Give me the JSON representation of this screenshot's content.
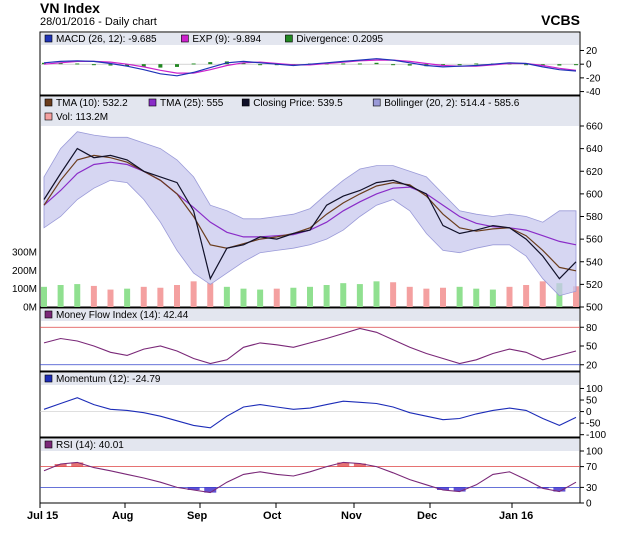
{
  "header": {
    "title": "VN Index",
    "subtitle": "28/01/2016 - Daily chart",
    "brand": "VCBS"
  },
  "colors": {
    "plot_bg": "#ffffff",
    "panel_border": "#000000",
    "legend_bg": "#e3e6ef",
    "macd": "#2034b8",
    "macd_ema": "#cc22cc",
    "divergence": "#228822",
    "tma10": "#6b3d1d",
    "tma25": "#8a2cc8",
    "close": "#101028",
    "bollinger_fill": "#c8c8ee",
    "bollinger_line": "#9a9ad8",
    "vol_up": "#90e090",
    "vol_down": "#f4a0a0",
    "mfi": "#7a2878",
    "momentum": "#1c2cb8",
    "rsi": "#7a2878",
    "ref_top": "#dd4444",
    "ref_bottom": "#3344cc",
    "rsi_over": "#e05a5a",
    "rsi_under": "#4433cc"
  },
  "x_axis": {
    "labels": [
      "Jul 15",
      "Aug",
      "Sep",
      "Oct",
      "Nov",
      "Dec",
      "Jan 16"
    ]
  },
  "chart_data": [
    {
      "type": "line",
      "panel": "macd",
      "legend": [
        {
          "label": "MACD (26, 12): -9.685",
          "color_key": "macd"
        },
        {
          "label": "EXP (9): -9.894",
          "color_key": "macd_ema"
        },
        {
          "label": "Divergence: 0.2095",
          "color_key": "divergence"
        }
      ],
      "y_ticks": [
        "20",
        "0",
        "-20",
        "-40"
      ],
      "ylim": [
        -45,
        28
      ],
      "series": [
        {
          "name": "MACD (26, 12)",
          "values": [
            2,
            4,
            5,
            4,
            1,
            -3,
            -8,
            -14,
            -17,
            -12,
            -5,
            2,
            4,
            2,
            0,
            -2,
            0,
            2,
            4,
            6,
            8,
            6,
            2,
            -2,
            -4,
            -3,
            -2,
            0,
            2,
            1,
            -4,
            -8,
            -10
          ]
        },
        {
          "name": "EXP (9)",
          "values": [
            0,
            2,
            4,
            4,
            3,
            0,
            -4,
            -9,
            -13,
            -13,
            -8,
            -2,
            2,
            3,
            1,
            -1,
            -1,
            1,
            3,
            5,
            6,
            6,
            4,
            1,
            -2,
            -3,
            -3,
            -1,
            1,
            1,
            -2,
            -6,
            -9
          ]
        }
      ],
      "divergence": [
        2,
        2,
        1,
        0,
        -2,
        -3,
        -4,
        -5,
        -4,
        1,
        3,
        4,
        2,
        -1,
        -1,
        -1,
        1,
        1,
        1,
        1,
        2,
        0,
        -2,
        -3,
        -2,
        0,
        1,
        1,
        1,
        0,
        -2,
        -2,
        -1
      ]
    },
    {
      "type": "line",
      "panel": "price",
      "legend": [
        {
          "label": "TMA (10): 532.2",
          "color_key": "tma10"
        },
        {
          "label": "TMA (25): 555",
          "color_key": "tma25"
        },
        {
          "label": "Closing Price: 539.5",
          "color_key": "close"
        },
        {
          "label": "Bollinger (20, 2): 514.4 - 585.6",
          "color_key": "bollinger_line"
        },
        {
          "label": "Vol: 113.2M",
          "color_key": "vol_down"
        }
      ],
      "y_ticks": [
        "660",
        "640",
        "620",
        "600",
        "580",
        "560",
        "540",
        "520",
        "500"
      ],
      "ylim": [
        500,
        660
      ],
      "volume_ticks": [
        "300M",
        "200M",
        "100M",
        "0M"
      ],
      "volume_lim": [
        0,
        300
      ],
      "series": [
        {
          "name": "Closing Price",
          "values": [
            595,
            618,
            640,
            632,
            634,
            630,
            620,
            615,
            610,
            585,
            525,
            552,
            555,
            562,
            560,
            565,
            568,
            590,
            598,
            603,
            610,
            612,
            607,
            600,
            572,
            565,
            568,
            572,
            570,
            560,
            545,
            525,
            540
          ]
        },
        {
          "name": "TMA (10)",
          "values": [
            590,
            612,
            630,
            634,
            632,
            628,
            620,
            612,
            600,
            580,
            555,
            552,
            556,
            560,
            562,
            565,
            570,
            582,
            592,
            600,
            607,
            610,
            608,
            598,
            582,
            570,
            567,
            569,
            570,
            563,
            550,
            535,
            532
          ]
        },
        {
          "name": "TMA (25)",
          "values": [
            590,
            603,
            618,
            626,
            628,
            626,
            620,
            612,
            600,
            588,
            575,
            566,
            562,
            562,
            563,
            564,
            568,
            575,
            585,
            593,
            600,
            605,
            606,
            600,
            590,
            580,
            574,
            571,
            570,
            568,
            563,
            558,
            555
          ]
        }
      ],
      "bollinger_upper": [
        615,
        640,
        655,
        652,
        650,
        650,
        645,
        640,
        630,
        615,
        590,
        585,
        578,
        578,
        580,
        582,
        587,
        600,
        612,
        622,
        625,
        625,
        620,
        615,
        600,
        585,
        582,
        580,
        582,
        580,
        575,
        585,
        585
      ],
      "bollinger_lower": [
        570,
        580,
        595,
        605,
        612,
        610,
        595,
        575,
        550,
        530,
        520,
        530,
        540,
        548,
        550,
        552,
        555,
        560,
        568,
        580,
        590,
        595,
        585,
        565,
        550,
        548,
        552,
        555,
        555,
        545,
        525,
        510,
        514
      ],
      "volume": [
        110,
        120,
        125,
        115,
        95,
        100,
        110,
        105,
        120,
        140,
        130,
        110,
        100,
        95,
        100,
        105,
        110,
        120,
        130,
        125,
        140,
        135,
        110,
        100,
        105,
        110,
        100,
        95,
        110,
        120,
        140,
        130,
        113
      ],
      "volume_up": [
        true,
        true,
        true,
        false,
        false,
        true,
        false,
        false,
        false,
        false,
        false,
        true,
        true,
        true,
        false,
        true,
        true,
        true,
        true,
        true,
        true,
        false,
        false,
        false,
        false,
        true,
        true,
        true,
        false,
        false,
        false,
        true,
        false
      ]
    },
    {
      "type": "line",
      "panel": "mfi",
      "legend": [
        {
          "label": "Money Flow Index (14): 42.44",
          "color_key": "mfi"
        }
      ],
      "y_ticks": [
        "80",
        "50",
        "20"
      ],
      "ylim": [
        10,
        90
      ],
      "ref_lines": [
        80,
        20
      ],
      "series": [
        {
          "name": "Money Flow Index (14)",
          "values": [
            55,
            62,
            58,
            50,
            40,
            35,
            45,
            50,
            42,
            30,
            22,
            28,
            48,
            55,
            52,
            48,
            55,
            62,
            70,
            78,
            72,
            60,
            48,
            38,
            30,
            22,
            28,
            38,
            45,
            40,
            28,
            35,
            42
          ]
        }
      ]
    },
    {
      "type": "line",
      "panel": "momentum",
      "legend": [
        {
          "label": "Momentum (12): -24.79",
          "color_key": "momentum"
        }
      ],
      "y_ticks": [
        "100",
        "50",
        "0",
        "-50",
        "-100"
      ],
      "ylim": [
        -110,
        115
      ],
      "series": [
        {
          "name": "Momentum (12)",
          "values": [
            10,
            35,
            60,
            30,
            10,
            5,
            -5,
            -20,
            -40,
            -60,
            -70,
            -20,
            20,
            30,
            20,
            10,
            15,
            30,
            45,
            40,
            35,
            20,
            -5,
            -20,
            -35,
            -30,
            -10,
            5,
            15,
            5,
            -30,
            -60,
            -25
          ]
        }
      ]
    },
    {
      "type": "line",
      "panel": "rsi",
      "legend": [
        {
          "label": "RSI (14): 40.01",
          "color_key": "rsi"
        }
      ],
      "y_ticks": [
        "100",
        "70",
        "30",
        "0"
      ],
      "ylim": [
        0,
        100
      ],
      "ref_lines": [
        70,
        30
      ],
      "series": [
        {
          "name": "RSI (14)",
          "values": [
            62,
            75,
            78,
            68,
            62,
            55,
            48,
            40,
            30,
            25,
            20,
            40,
            55,
            60,
            55,
            52,
            60,
            70,
            78,
            76,
            70,
            58,
            45,
            35,
            25,
            22,
            35,
            55,
            60,
            45,
            28,
            22,
            40
          ]
        }
      ]
    }
  ]
}
